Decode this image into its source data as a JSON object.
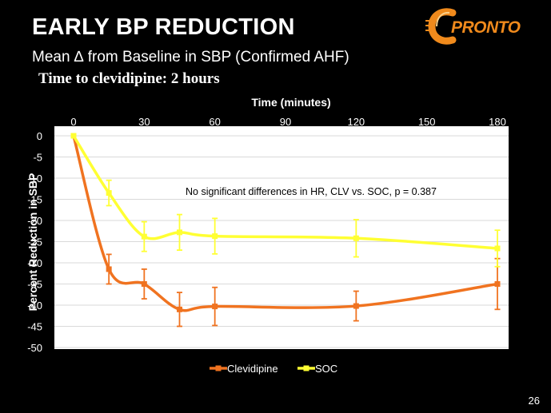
{
  "slide": {
    "title": "EARLY BP REDUCTION",
    "subtitle": "Mean ∆ from Baseline in SBP (Confirmed AHF)",
    "note": "Time to clevidipine: 2 hours",
    "logo_text": "PRONTO",
    "logo_icon": "stylized-c-icon",
    "page_number": "26"
  },
  "colors": {
    "background": "#000000",
    "plot_background": "#ffffff",
    "gridline": "#d9d9d9",
    "clevidipine": "#f07320",
    "soc": "#ffff33",
    "logo": "#f08a1c"
  },
  "chart_data": {
    "type": "line",
    "title": "",
    "xlabel": "Time (minutes)",
    "ylabel": "Percent Reduction in SBP",
    "x_axis_position": "top",
    "xlim": [
      0,
      180
    ],
    "ylim": [
      -50,
      0
    ],
    "xticks": [
      0,
      30,
      60,
      90,
      120,
      150,
      180
    ],
    "yticks": [
      0,
      -5,
      -10,
      -15,
      -20,
      -25,
      -30,
      -35,
      -40,
      -45,
      -50
    ],
    "grid": "horizontal",
    "legend_position": "bottom",
    "annotation": "No significant differences in HR, CLV vs. SOC,  p = 0.387",
    "series": [
      {
        "name": "Clevidipine",
        "color": "#f07320",
        "points": [
          {
            "x": 0,
            "y": 0,
            "err": 0
          },
          {
            "x": 15,
            "y": -31.5,
            "err": 3.5
          },
          {
            "x": 30,
            "y": -35,
            "err": 3.5
          },
          {
            "x": 45,
            "y": -41,
            "err": 4
          },
          {
            "x": 60,
            "y": -40.3,
            "err": 4.5
          },
          {
            "x": 120,
            "y": -40.2,
            "err": 3.5
          },
          {
            "x": 180,
            "y": -35,
            "err": 6
          }
        ]
      },
      {
        "name": "SOC",
        "color": "#ffff33",
        "points": [
          {
            "x": 0,
            "y": 0,
            "err": 0
          },
          {
            "x": 15,
            "y": -13.5,
            "err": 3
          },
          {
            "x": 30,
            "y": -23.8,
            "err": 3.5
          },
          {
            "x": 45,
            "y": -22.8,
            "err": 4.2
          },
          {
            "x": 60,
            "y": -23.7,
            "err": 4.2
          },
          {
            "x": 120,
            "y": -24.2,
            "err": 4.4
          },
          {
            "x": 180,
            "y": -26.6,
            "err": 4.3
          }
        ]
      }
    ]
  }
}
